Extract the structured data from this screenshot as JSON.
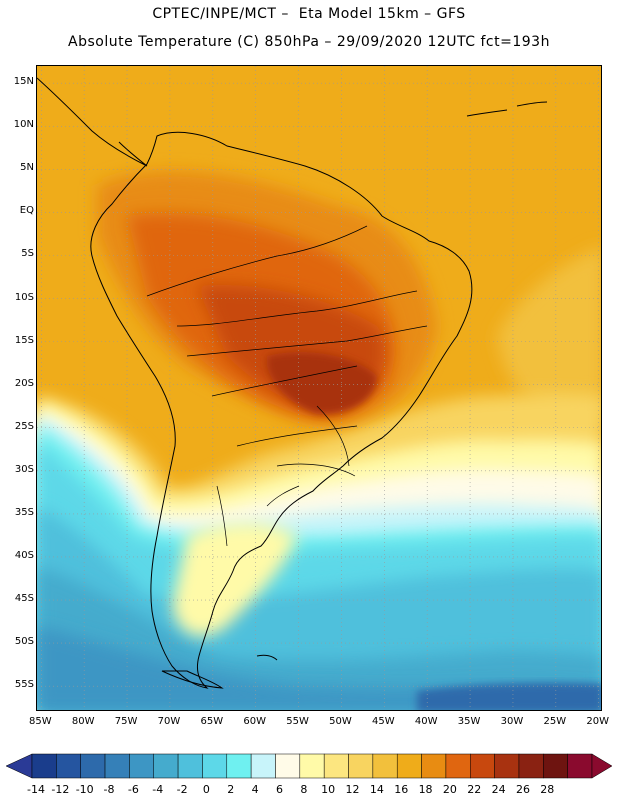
{
  "header": {
    "line1": "CPTEC/INPE/MCT –  Eta Model 15km – GFS",
    "line2": "Absolute Temperature (C) 850hPa – 29/09/2020 12UTC fct=193h"
  },
  "map": {
    "lat_labels": [
      "15N",
      "10N",
      "5N",
      "EQ",
      "5S",
      "10S",
      "15S",
      "20S",
      "25S",
      "30S",
      "35S",
      "40S",
      "45S",
      "50S",
      "55S"
    ],
    "lon_labels": [
      "85W",
      "80W",
      "75W",
      "70W",
      "65W",
      "60W",
      "55W",
      "50W",
      "45W",
      "40W",
      "35W",
      "30W",
      "25W",
      "20W"
    ],
    "lat_values": [
      15,
      10,
      5,
      0,
      -5,
      -10,
      -15,
      -20,
      -25,
      -30,
      -35,
      -40,
      -45,
      -50,
      -55
    ],
    "lon_values": [
      -85,
      -80,
      -75,
      -70,
      -65,
      -60,
      -55,
      -50,
      -45,
      -40,
      -35,
      -30,
      -25,
      -20
    ],
    "lat_range": [
      -58,
      17
    ],
    "lon_range": [
      -85.5,
      -19.5
    ],
    "variable": "Absolute Temperature (C) 850hPa"
  },
  "colorbar": {
    "labels": [
      "-14",
      "-12",
      "-10",
      "-8",
      "-6",
      "-4",
      "-2",
      "0",
      "2",
      "4",
      "6",
      "8",
      "10",
      "12",
      "14",
      "16",
      "18",
      "20",
      "22",
      "24",
      "26",
      "28"
    ],
    "colors": [
      "#1a3d8c",
      "#2555a0",
      "#2d6aab",
      "#3580b8",
      "#3d96c4",
      "#45abcd",
      "#4fc0dc",
      "#5dd8e8",
      "#6ff0f0",
      "#c8f4fa",
      "#fffbe8",
      "#fffaa8",
      "#fce680",
      "#f8d460",
      "#f2c03c",
      "#efac1a",
      "#e88c12",
      "#e06610",
      "#c8480e",
      "#a83210",
      "#8a2212",
      "#6e1410",
      "#8a0a2e"
    ],
    "left_cap_color": "#2a3a96",
    "right_cap_color": "#8a0a2e"
  }
}
